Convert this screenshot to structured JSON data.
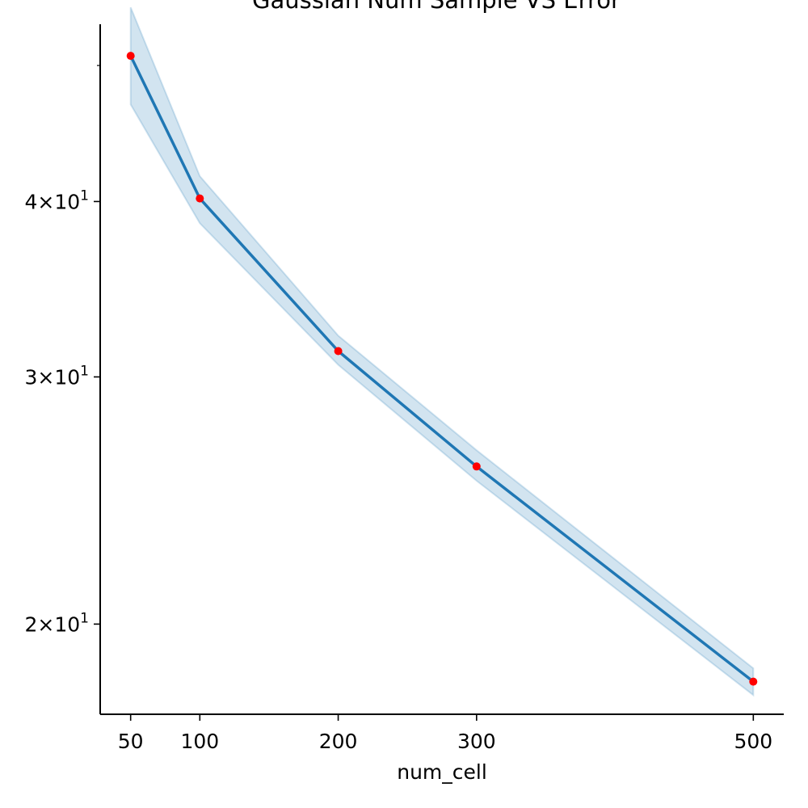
{
  "chart_data": {
    "type": "line",
    "title": "Gaussian Num Sample VS Error",
    "xlabel": "num_cell",
    "ylabel": "",
    "y_scale": "log",
    "grid": false,
    "legend": "none",
    "xlim": [
      28,
      522
    ],
    "ylim": [
      17.25,
      53.5
    ],
    "x_ticks": [
      50,
      100,
      200,
      300,
      500
    ],
    "y_ticks": [
      {
        "value": 20,
        "base": "2",
        "exp": "1"
      },
      {
        "value": 30,
        "base": "3",
        "exp": "1"
      },
      {
        "value": 40,
        "base": "4",
        "exp": "1"
      }
    ],
    "y_minor_ticks": [
      50
    ],
    "series": [
      {
        "x": [
          50,
          100,
          200,
          300,
          500
        ],
        "values": [
          50.8,
          40.2,
          31.3,
          25.9,
          18.2
        ],
        "lower": [
          46.9,
          38.6,
          30.6,
          25.3,
          17.8
        ],
        "upper": [
          55.0,
          41.7,
          32.1,
          26.6,
          18.6
        ],
        "line_color": "#1f77b4",
        "band_color": "#1f77b4",
        "marker_color": "#ff0000"
      }
    ]
  }
}
